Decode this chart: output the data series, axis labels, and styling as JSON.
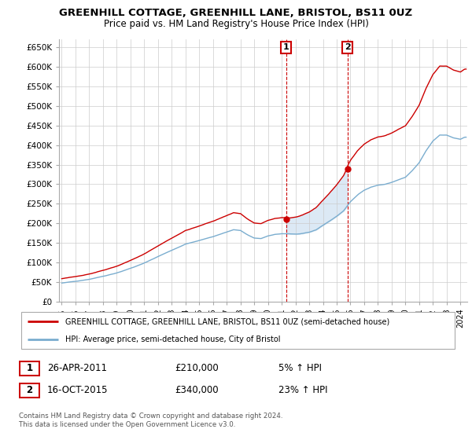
{
  "title": "GREENHILL COTTAGE, GREENHILL LANE, BRISTOL, BS11 0UZ",
  "subtitle": "Price paid vs. HM Land Registry's House Price Index (HPI)",
  "ylim": [
    0,
    670000
  ],
  "yticks": [
    0,
    50000,
    100000,
    150000,
    200000,
    250000,
    300000,
    350000,
    400000,
    450000,
    500000,
    550000,
    600000,
    650000
  ],
  "ytick_labels": [
    "£0",
    "£50K",
    "£100K",
    "£150K",
    "£200K",
    "£250K",
    "£300K",
    "£350K",
    "£400K",
    "£450K",
    "£500K",
    "£550K",
    "£600K",
    "£650K"
  ],
  "sale1_year": 2011.32,
  "sale1_price": 210000,
  "sale2_year": 2015.79,
  "sale2_price": 340000,
  "legend_line1": "GREENHILL COTTAGE, GREENHILL LANE, BRISTOL, BS11 0UZ (semi-detached house)",
  "legend_line2": "HPI: Average price, semi-detached house, City of Bristol",
  "table_row1": [
    "1",
    "26-APR-2011",
    "£210,000",
    "5% ↑ HPI"
  ],
  "table_row2": [
    "2",
    "16-OCT-2015",
    "£340,000",
    "23% ↑ HPI"
  ],
  "footer": "Contains HM Land Registry data © Crown copyright and database right 2024.\nThis data is licensed under the Open Government Licence v3.0.",
  "line_red": "#cc0000",
  "line_blue": "#7aadcf",
  "shading_color": "#dce9f5",
  "dashed_color": "#cc0000",
  "grid_color": "#cccccc",
  "xlim_start": 1994.8,
  "xlim_end": 2024.5
}
